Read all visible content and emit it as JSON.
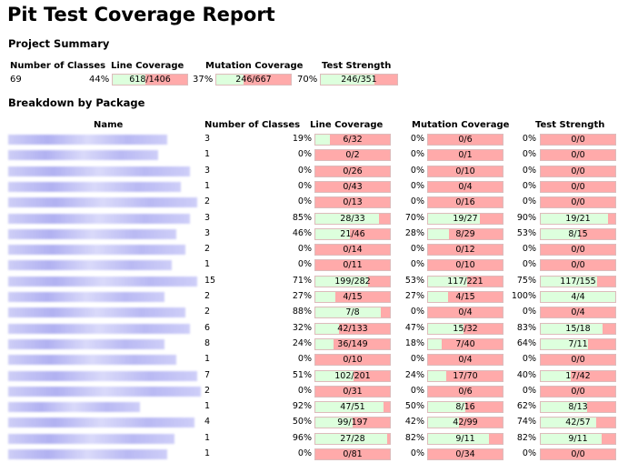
{
  "title": "Pit Test Coverage Report",
  "project_summary": {
    "heading": "Project Summary",
    "headers": {
      "classes": "Number of Classes",
      "line": "Line Coverage",
      "mutation": "Mutation Coverage",
      "strength": "Test Strength"
    },
    "classes": "69",
    "line": {
      "pct": "44%",
      "text": "618/1406",
      "fill": 0.44
    },
    "mutation": {
      "pct": "37%",
      "text": "246/667",
      "fill": 0.37
    },
    "strength": {
      "pct": "70%",
      "text": "246/351",
      "fill": 0.7
    }
  },
  "breakdown": {
    "heading": "Breakdown by Package",
    "headers": {
      "name": "Name",
      "classes": "Number of Classes",
      "line": "Line Coverage",
      "mutation": "Mutation Coverage",
      "strength": "Test Strength"
    },
    "rows": [
      {
        "classes": "3",
        "line_pct": "19%",
        "line": "6/32",
        "line_fill": 0.19,
        "mut_pct": "0%",
        "mut": "0/6",
        "mut_fill": 0,
        "str_pct": "0%",
        "str": "0/0",
        "str_fill": 0
      },
      {
        "classes": "1",
        "line_pct": "0%",
        "line": "0/2",
        "line_fill": 0,
        "mut_pct": "0%",
        "mut": "0/1",
        "mut_fill": 0,
        "str_pct": "0%",
        "str": "0/0",
        "str_fill": 0
      },
      {
        "classes": "3",
        "line_pct": "0%",
        "line": "0/26",
        "line_fill": 0,
        "mut_pct": "0%",
        "mut": "0/10",
        "mut_fill": 0,
        "str_pct": "0%",
        "str": "0/0",
        "str_fill": 0
      },
      {
        "classes": "1",
        "line_pct": "0%",
        "line": "0/43",
        "line_fill": 0,
        "mut_pct": "0%",
        "mut": "0/4",
        "mut_fill": 0,
        "str_pct": "0%",
        "str": "0/0",
        "str_fill": 0
      },
      {
        "classes": "2",
        "line_pct": "0%",
        "line": "0/13",
        "line_fill": 0,
        "mut_pct": "0%",
        "mut": "0/16",
        "mut_fill": 0,
        "str_pct": "0%",
        "str": "0/0",
        "str_fill": 0
      },
      {
        "classes": "3",
        "line_pct": "85%",
        "line": "28/33",
        "line_fill": 0.85,
        "mut_pct": "70%",
        "mut": "19/27",
        "mut_fill": 0.7,
        "str_pct": "90%",
        "str": "19/21",
        "str_fill": 0.9
      },
      {
        "classes": "3",
        "line_pct": "46%",
        "line": "21/46",
        "line_fill": 0.46,
        "mut_pct": "28%",
        "mut": "8/29",
        "mut_fill": 0.28,
        "str_pct": "53%",
        "str": "8/15",
        "str_fill": 0.53
      },
      {
        "classes": "2",
        "line_pct": "0%",
        "line": "0/14",
        "line_fill": 0,
        "mut_pct": "0%",
        "mut": "0/12",
        "mut_fill": 0,
        "str_pct": "0%",
        "str": "0/0",
        "str_fill": 0
      },
      {
        "classes": "1",
        "line_pct": "0%",
        "line": "0/11",
        "line_fill": 0,
        "mut_pct": "0%",
        "mut": "0/10",
        "mut_fill": 0,
        "str_pct": "0%",
        "str": "0/0",
        "str_fill": 0
      },
      {
        "classes": "15",
        "line_pct": "71%",
        "line": "199/282",
        "line_fill": 0.71,
        "mut_pct": "53%",
        "mut": "117/221",
        "mut_fill": 0.53,
        "str_pct": "75%",
        "str": "117/155",
        "str_fill": 0.75
      },
      {
        "classes": "2",
        "line_pct": "27%",
        "line": "4/15",
        "line_fill": 0.27,
        "mut_pct": "27%",
        "mut": "4/15",
        "mut_fill": 0.27,
        "str_pct": "100%",
        "str": "4/4",
        "str_fill": 1.0
      },
      {
        "classes": "2",
        "line_pct": "88%",
        "line": "7/8",
        "line_fill": 0.88,
        "mut_pct": "0%",
        "mut": "0/4",
        "mut_fill": 0,
        "str_pct": "0%",
        "str": "0/4",
        "str_fill": 0
      },
      {
        "classes": "6",
        "line_pct": "32%",
        "line": "42/133",
        "line_fill": 0.32,
        "mut_pct": "47%",
        "mut": "15/32",
        "mut_fill": 0.47,
        "str_pct": "83%",
        "str": "15/18",
        "str_fill": 0.83
      },
      {
        "classes": "8",
        "line_pct": "24%",
        "line": "36/149",
        "line_fill": 0.24,
        "mut_pct": "18%",
        "mut": "7/40",
        "mut_fill": 0.18,
        "str_pct": "64%",
        "str": "7/11",
        "str_fill": 0.64
      },
      {
        "classes": "1",
        "line_pct": "0%",
        "line": "0/10",
        "line_fill": 0,
        "mut_pct": "0%",
        "mut": "0/4",
        "mut_fill": 0,
        "str_pct": "0%",
        "str": "0/0",
        "str_fill": 0
      },
      {
        "classes": "7",
        "line_pct": "51%",
        "line": "102/201",
        "line_fill": 0.51,
        "mut_pct": "24%",
        "mut": "17/70",
        "mut_fill": 0.24,
        "str_pct": "40%",
        "str": "17/42",
        "str_fill": 0.4
      },
      {
        "classes": "2",
        "line_pct": "0%",
        "line": "0/31",
        "line_fill": 0,
        "mut_pct": "0%",
        "mut": "0/6",
        "mut_fill": 0,
        "str_pct": "0%",
        "str": "0/0",
        "str_fill": 0
      },
      {
        "classes": "1",
        "line_pct": "92%",
        "line": "47/51",
        "line_fill": 0.92,
        "mut_pct": "50%",
        "mut": "8/16",
        "mut_fill": 0.5,
        "str_pct": "62%",
        "str": "8/13",
        "str_fill": 0.62
      },
      {
        "classes": "4",
        "line_pct": "50%",
        "line": "99/197",
        "line_fill": 0.5,
        "mut_pct": "42%",
        "mut": "42/99",
        "mut_fill": 0.42,
        "str_pct": "74%",
        "str": "42/57",
        "str_fill": 0.74
      },
      {
        "classes": "1",
        "line_pct": "96%",
        "line": "27/28",
        "line_fill": 0.96,
        "mut_pct": "82%",
        "mut": "9/11",
        "mut_fill": 0.82,
        "str_pct": "82%",
        "str": "9/11",
        "str_fill": 0.82
      },
      {
        "classes": "1",
        "line_pct": "0%",
        "line": "0/81",
        "line_fill": 0,
        "mut_pct": "0%",
        "mut": "0/34",
        "mut_fill": 0,
        "str_pct": "0%",
        "str": "0/0",
        "str_fill": 0
      }
    ]
  }
}
